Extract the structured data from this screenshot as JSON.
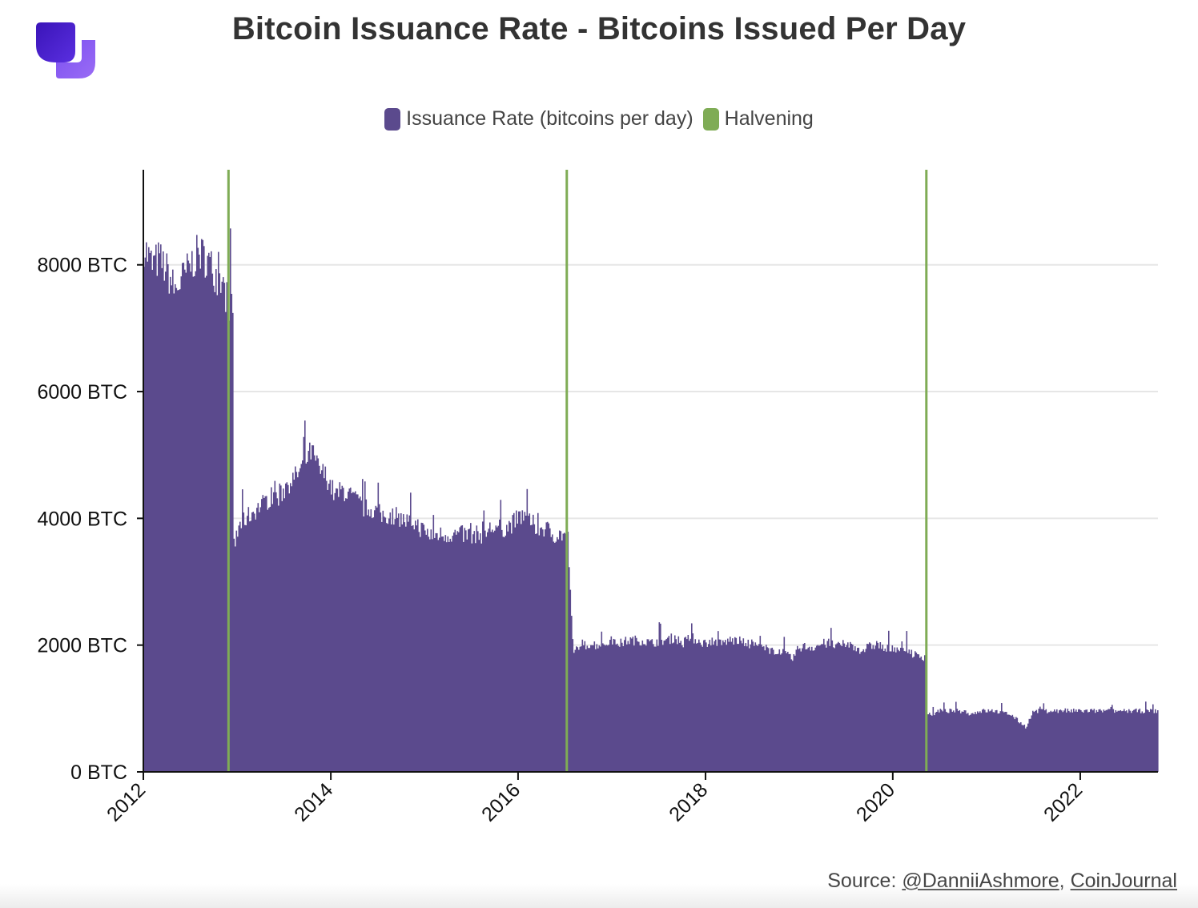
{
  "title": "Bitcoin Issuance Rate - Bitcoins Issued Per Day",
  "legend": {
    "issuance_label": "Issuance Rate (bitcoins per day)",
    "halvening_label": "Halvening"
  },
  "source": {
    "prefix": "Source:",
    "author": "@DanniiAshmore",
    "separator": ",",
    "site": "CoinJournal"
  },
  "colors": {
    "issuance": "#5b4a8d",
    "halvening": "#7fac55",
    "grid": "#e6e6e6",
    "axis": "#111111",
    "logo_dark": "#4a1fc4",
    "logo_light": "#8a5cf0"
  },
  "logo": {
    "icon": "coinjournal-logo-icon"
  },
  "chart_data": {
    "type": "bar",
    "title": "Bitcoin Issuance Rate - Bitcoins Issued Per Day",
    "xlabel": "",
    "ylabel": "",
    "xlim": [
      "2012-01-01",
      "2022-10-31"
    ],
    "ylim": [
      0,
      9500
    ],
    "y_ticks": [
      0,
      2000,
      4000,
      6000,
      8000
    ],
    "y_tick_labels": [
      "0 BTC",
      "2000 BTC",
      "4000 BTC",
      "6000 BTC",
      "8000 BTC"
    ],
    "x_ticks": [
      "2012-01-01",
      "2014-01-01",
      "2016-01-01",
      "2018-01-01",
      "2020-01-01",
      "2022-01-01"
    ],
    "x_tick_labels": [
      "2012",
      "2014",
      "2016",
      "2018",
      "2020",
      "2022"
    ],
    "grid": "horizontal",
    "legend_position": "top-center",
    "series": [
      {
        "name": "Issuance Rate (bitcoins per day)",
        "x": [
          "2012-01-01",
          "2012-02-01",
          "2012-03-01",
          "2012-04-01",
          "2012-05-01",
          "2012-06-01",
          "2012-07-01",
          "2012-08-01",
          "2012-09-01",
          "2012-10-01",
          "2012-11-01",
          "2012-11-27",
          "2012-12-15",
          "2013-01-15",
          "2013-02-15",
          "2013-03-15",
          "2013-04-15",
          "2013-05-15",
          "2013-06-15",
          "2013-07-15",
          "2013-08-15",
          "2013-09-15",
          "2013-10-15",
          "2013-11-15",
          "2013-12-15",
          "2014-01-15",
          "2014-02-15",
          "2014-03-15",
          "2014-04-15",
          "2014-05-15",
          "2014-06-15",
          "2014-07-15",
          "2014-08-15",
          "2014-09-15",
          "2014-10-15",
          "2014-11-15",
          "2014-12-15",
          "2015-01-15",
          "2015-02-15",
          "2015-03-15",
          "2015-04-15",
          "2015-05-15",
          "2015-06-15",
          "2015-07-15",
          "2015-08-15",
          "2015-09-15",
          "2015-10-15",
          "2015-11-15",
          "2015-12-15",
          "2016-01-15",
          "2016-02-15",
          "2016-03-15",
          "2016-04-15",
          "2016-05-15",
          "2016-06-15",
          "2016-07-09",
          "2016-08-01",
          "2016-09-01",
          "2016-10-01",
          "2016-11-01",
          "2016-12-01",
          "2017-01-01",
          "2017-02-01",
          "2017-03-01",
          "2017-04-01",
          "2017-05-01",
          "2017-06-01",
          "2017-07-01",
          "2017-08-01",
          "2017-09-01",
          "2017-10-01",
          "2017-11-01",
          "2017-12-01",
          "2018-01-01",
          "2018-02-01",
          "2018-03-01",
          "2018-04-01",
          "2018-05-01",
          "2018-06-01",
          "2018-07-01",
          "2018-08-01",
          "2018-09-01",
          "2018-10-01",
          "2018-11-01",
          "2018-12-01",
          "2019-01-01",
          "2019-02-01",
          "2019-03-01",
          "2019-04-01",
          "2019-05-01",
          "2019-06-01",
          "2019-07-01",
          "2019-08-01",
          "2019-09-01",
          "2019-10-01",
          "2019-11-01",
          "2019-12-01",
          "2020-01-01",
          "2020-02-01",
          "2020-03-01",
          "2020-04-01",
          "2020-05-11",
          "2020-06-01",
          "2020-07-01",
          "2020-08-01",
          "2020-09-01",
          "2020-10-01",
          "2020-11-01",
          "2020-12-01",
          "2021-01-01",
          "2021-02-01",
          "2021-03-01",
          "2021-04-01",
          "2021-05-01",
          "2021-06-01",
          "2021-07-01",
          "2021-08-01",
          "2021-09-01",
          "2021-10-01",
          "2021-11-01",
          "2021-12-01",
          "2022-01-01",
          "2022-02-01",
          "2022-03-01",
          "2022-04-01",
          "2022-05-01",
          "2022-06-01",
          "2022-07-01",
          "2022-08-01",
          "2022-09-01",
          "2022-10-01"
        ],
        "values": [
          8200,
          7900,
          8000,
          7800,
          7500,
          7700,
          7900,
          8100,
          8000,
          7800,
          7600,
          7300,
          3500,
          3900,
          4000,
          4100,
          4200,
          4300,
          4300,
          4500,
          4600,
          4800,
          5000,
          4700,
          4600,
          4300,
          4400,
          4300,
          4200,
          4100,
          4100,
          4000,
          4000,
          4000,
          3900,
          3900,
          3800,
          3700,
          3700,
          3700,
          3700,
          3700,
          3700,
          3700,
          3700,
          3800,
          3800,
          3800,
          3900,
          4000,
          3900,
          3800,
          3800,
          3700,
          3700,
          3600,
          1900,
          1950,
          2000,
          1980,
          2000,
          2050,
          2000,
          2050,
          2050,
          2050,
          2000,
          2050,
          2050,
          2100,
          2000,
          2100,
          2050,
          2000,
          2050,
          2000,
          2050,
          2050,
          2000,
          2000,
          1950,
          1900,
          1900,
          1850,
          1750,
          1950,
          1950,
          1950,
          2000,
          2000,
          1950,
          2000,
          1950,
          1900,
          1950,
          2000,
          1900,
          1950,
          1900,
          1900,
          1800,
          900,
          900,
          950,
          950,
          950,
          950,
          900,
          950,
          950,
          950,
          920,
          900,
          800,
          700,
          950,
          950,
          950,
          950,
          950,
          950,
          950,
          950,
          950,
          950,
          950,
          950,
          950,
          950,
          950,
          950
        ]
      },
      {
        "name": "Halvening",
        "type": "vline",
        "x": [
          "2012-11-28",
          "2016-07-09",
          "2020-05-11"
        ]
      }
    ]
  }
}
